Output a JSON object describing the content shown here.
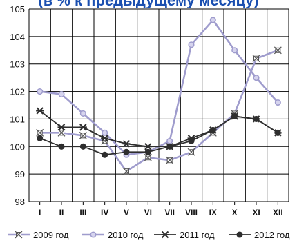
{
  "chart_data": {
    "type": "line",
    "title": "(в % к предыдущему месяцу)",
    "categories": [
      "I",
      "II",
      "III",
      "IV",
      "V",
      "VI",
      "VII",
      "VIII",
      "IX",
      "X",
      "XI",
      "XII"
    ],
    "y_ticks": [
      "98",
      "99",
      "100",
      "101",
      "102",
      "103",
      "104",
      "105"
    ],
    "ylim": [
      98,
      105
    ],
    "grid": true,
    "legend_position": "bottom",
    "series": [
      {
        "name": "2009 год",
        "color": "#9f9ccd",
        "marker": "x-square",
        "values": [
          100.5,
          100.5,
          100.4,
          100.2,
          99.1,
          99.6,
          99.5,
          99.8,
          100.5,
          101.2,
          103.2,
          103.5
        ]
      },
      {
        "name": "2010 год",
        "color": "#9f9ccd",
        "marker": "circle",
        "values": [
          102.0,
          101.9,
          101.2,
          100.5,
          99.7,
          99.8,
          100.2,
          103.7,
          104.6,
          103.5,
          102.5,
          101.6
        ]
      },
      {
        "name": "2011 год",
        "color": "#2e2e2e",
        "marker": "x-star",
        "values": [
          101.3,
          100.7,
          100.7,
          100.3,
          100.1,
          100.0,
          100.0,
          100.3,
          100.6,
          101.1,
          101.0,
          100.5
        ]
      },
      {
        "name": "2012 год",
        "color": "#2e2e2e",
        "marker": "circle",
        "values": [
          100.3,
          100.0,
          100.0,
          99.7,
          99.8,
          99.8,
          100.0,
          100.2,
          100.6,
          101.1,
          101.0,
          100.5
        ]
      }
    ]
  }
}
